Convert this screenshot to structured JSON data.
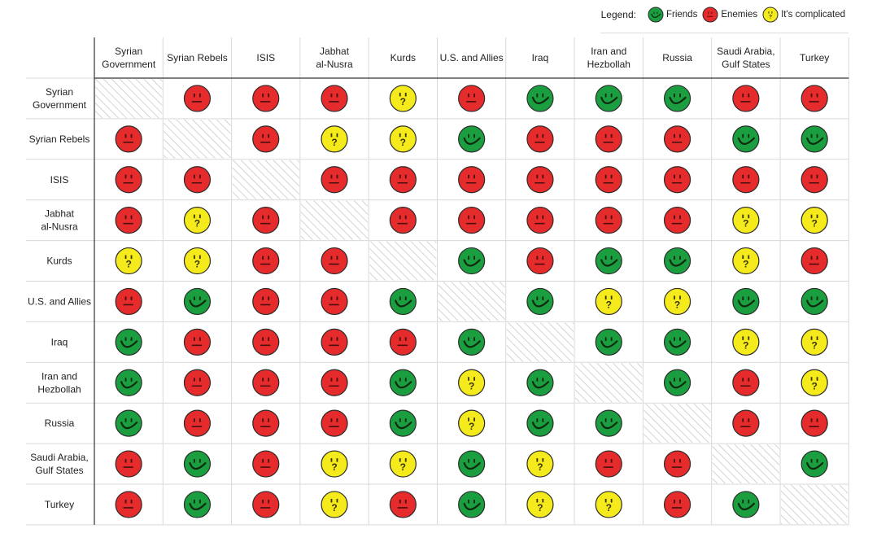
{
  "legend": {
    "title": "Legend:",
    "items": [
      {
        "key": "friends",
        "label": "Friends"
      },
      {
        "key": "enemies",
        "label": "Enemies"
      },
      {
        "key": "complicated",
        "label": "It's complicated"
      }
    ]
  },
  "colors": {
    "friends": "#1a9e3f",
    "enemies": "#e52b2b",
    "complicated": "#f5ea1b",
    "face_stroke": "#2b2b2b",
    "hatch": "#bdbdbd",
    "grid": "#d9d9d9"
  },
  "chart_data": {
    "type": "table",
    "columns": [
      [
        "Syrian",
        "Government"
      ],
      [
        "Syrian Rebels"
      ],
      [
        "ISIS"
      ],
      [
        "Jabhat",
        "al-Nusra"
      ],
      [
        "Kurds"
      ],
      [
        "U.S. and Allies"
      ],
      [
        "Iraq"
      ],
      [
        "Iran and",
        "Hezbollah"
      ],
      [
        "Russia"
      ],
      [
        "Saudi Arabia,",
        "Gulf States"
      ],
      [
        "Turkey"
      ]
    ],
    "rows": [
      [
        "Syrian",
        "Government"
      ],
      [
        "Syrian Rebels"
      ],
      [
        "ISIS"
      ],
      [
        "Jabhat",
        "al-Nusra"
      ],
      [
        "Kurds"
      ],
      [
        "U.S. and Allies"
      ],
      [
        "Iraq"
      ],
      [
        "Iran and",
        "Hezbollah"
      ],
      [
        "Russia"
      ],
      [
        "Saudi Arabia,",
        "Gulf States"
      ],
      [
        "Turkey"
      ]
    ],
    "values": [
      [
        "none",
        "enemies",
        "enemies",
        "enemies",
        "complicated",
        "enemies",
        "friends",
        "friends",
        "friends",
        "enemies",
        "enemies"
      ],
      [
        "enemies",
        "none",
        "enemies",
        "complicated",
        "complicated",
        "friends",
        "enemies",
        "enemies",
        "enemies",
        "friends",
        "friends"
      ],
      [
        "enemies",
        "enemies",
        "none",
        "enemies",
        "enemies",
        "enemies",
        "enemies",
        "enemies",
        "enemies",
        "enemies",
        "enemies"
      ],
      [
        "enemies",
        "complicated",
        "enemies",
        "none",
        "enemies",
        "enemies",
        "enemies",
        "enemies",
        "enemies",
        "complicated",
        "complicated"
      ],
      [
        "complicated",
        "complicated",
        "enemies",
        "enemies",
        "none",
        "friends",
        "enemies",
        "friends",
        "friends",
        "complicated",
        "enemies"
      ],
      [
        "enemies",
        "friends",
        "enemies",
        "enemies",
        "friends",
        "none",
        "friends",
        "complicated",
        "complicated",
        "friends",
        "friends"
      ],
      [
        "friends",
        "enemies",
        "enemies",
        "enemies",
        "enemies",
        "friends",
        "none",
        "friends",
        "friends",
        "complicated",
        "complicated"
      ],
      [
        "friends",
        "enemies",
        "enemies",
        "enemies",
        "friends",
        "complicated",
        "friends",
        "none",
        "friends",
        "enemies",
        "complicated"
      ],
      [
        "friends",
        "enemies",
        "enemies",
        "enemies",
        "friends",
        "complicated",
        "friends",
        "friends",
        "none",
        "enemies",
        "enemies"
      ],
      [
        "enemies",
        "friends",
        "enemies",
        "complicated",
        "complicated",
        "friends",
        "complicated",
        "enemies",
        "enemies",
        "none",
        "friends"
      ],
      [
        "enemies",
        "friends",
        "enemies",
        "complicated",
        "enemies",
        "friends",
        "complicated",
        "complicated",
        "enemies",
        "friends",
        "none"
      ]
    ]
  }
}
